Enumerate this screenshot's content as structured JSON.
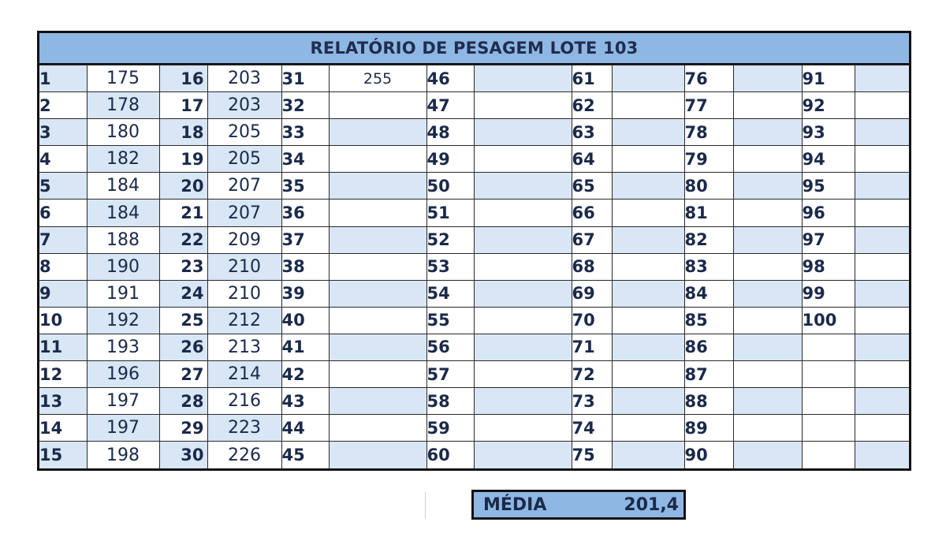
{
  "title": "RELATÓRIO DE PESAGEM LOTE 103",
  "columns": [
    {
      "indices": [
        "1",
        "2",
        "3",
        "4",
        "5",
        "6",
        "7",
        "8",
        "9",
        "10",
        "11",
        "12",
        "13",
        "14",
        "15"
      ],
      "values": [
        "175",
        "178",
        "180",
        "182",
        "184",
        "184",
        "188",
        "190",
        "191",
        "192",
        "193",
        "196",
        "197",
        "197",
        "198"
      ]
    },
    {
      "indices": [
        "16",
        "17",
        "18",
        "19",
        "20",
        "21",
        "22",
        "23",
        "24",
        "25",
        "26",
        "27",
        "28",
        "29",
        "30"
      ],
      "values": [
        "203",
        "203",
        "205",
        "205",
        "207",
        "207",
        "209",
        "210",
        "210",
        "212",
        "213",
        "214",
        "216",
        "223",
        "226"
      ]
    },
    {
      "indices": [
        "31",
        "32",
        "33",
        "34",
        "35",
        "36",
        "37",
        "38",
        "39",
        "40",
        "41",
        "42",
        "43",
        "44",
        "45"
      ],
      "values": [
        "255",
        "",
        "",
        "",
        "",
        "",
        "",
        "",
        "",
        "",
        "",
        "",
        "",
        "",
        ""
      ]
    },
    {
      "indices": [
        "46",
        "47",
        "48",
        "49",
        "50",
        "51",
        "52",
        "53",
        "54",
        "55",
        "56",
        "57",
        "58",
        "59",
        "60"
      ],
      "values": [
        "",
        "",
        "",
        "",
        "",
        "",
        "",
        "",
        "",
        "",
        "",
        "",
        "",
        "",
        ""
      ]
    },
    {
      "indices": [
        "61",
        "62",
        "63",
        "64",
        "65",
        "66",
        "67",
        "68",
        "69",
        "70",
        "71",
        "72",
        "73",
        "74",
        "75"
      ],
      "values": [
        "",
        "",
        "",
        "",
        "",
        "",
        "",
        "",
        "",
        "",
        "",
        "",
        "",
        "",
        ""
      ]
    },
    {
      "indices": [
        "76",
        "77",
        "78",
        "79",
        "80",
        "81",
        "82",
        "83",
        "84",
        "85",
        "86",
        "87",
        "88",
        "89",
        "90"
      ],
      "values": [
        "",
        "",
        "",
        "",
        "",
        "",
        "",
        "",
        "",
        "",
        "",
        "",
        "",
        "",
        ""
      ]
    },
    {
      "indices": [
        "91",
        "92",
        "93",
        "94",
        "95",
        "96",
        "97",
        "98",
        "99",
        "100",
        "",
        "",
        "",
        "",
        ""
      ],
      "values": [
        "",
        "",
        "",
        "",
        "",
        "",
        "",
        "",
        "",
        "",
        "",
        "",
        "",
        "",
        ""
      ]
    }
  ],
  "media": {
    "label": "MÉDIA",
    "value": "201,4"
  }
}
